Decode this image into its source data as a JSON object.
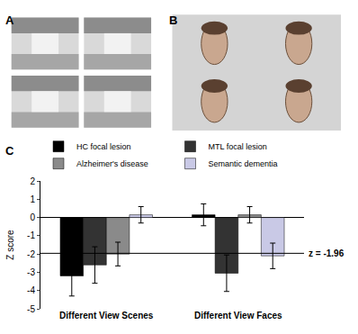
{
  "panel_labels": [
    "A",
    "B",
    "C"
  ],
  "chart_data": {
    "type": "bar",
    "categories": [
      "Different View Scenes",
      "Different View Faces"
    ],
    "series": [
      {
        "name": "HC focal lesion",
        "color": "#000000",
        "values": [
          -3.2,
          0.15
        ],
        "errors": [
          1.1,
          0.6
        ]
      },
      {
        "name": "MTL focal lesion",
        "color": "#333333",
        "values": [
          -2.6,
          -3.05
        ],
        "errors": [
          1.0,
          1.0
        ]
      },
      {
        "name": "Alzheimer's disease",
        "color": "#8a8a8a",
        "values": [
          -2.0,
          0.15
        ],
        "errors": [
          0.65,
          0.45
        ]
      },
      {
        "name": "Semantic dementia",
        "color": "#c9c9e6",
        "values": [
          0.15,
          -2.1
        ],
        "errors": [
          0.45,
          0.7
        ]
      }
    ],
    "y_label": "Z score",
    "ylim": [
      -5,
      2
    ],
    "yticks": [
      -5,
      -4,
      -3,
      -2,
      -1,
      0,
      1,
      2
    ],
    "annotations": [
      {
        "y": -1.96,
        "text": "z = -1.96"
      }
    ],
    "legend": "upper left",
    "grid": false
  }
}
